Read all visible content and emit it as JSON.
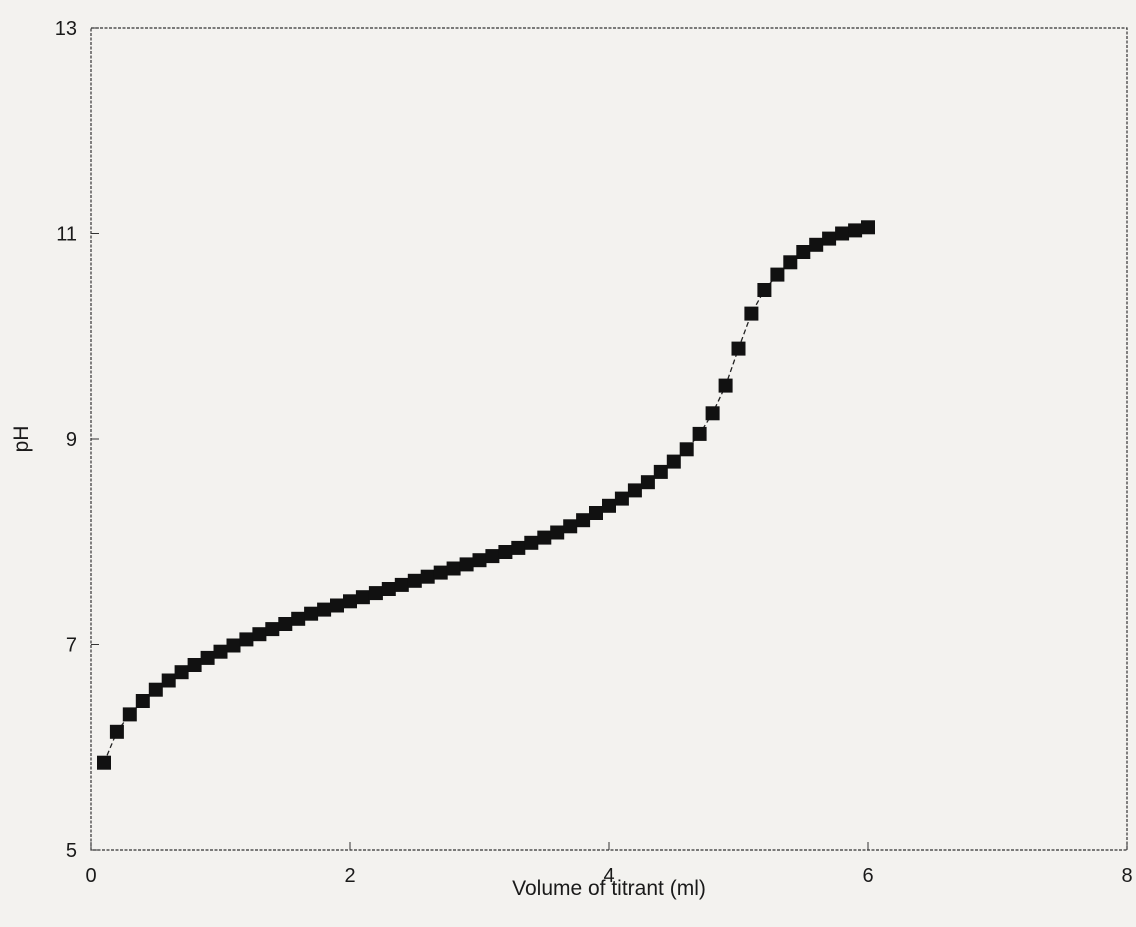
{
  "chart_data": {
    "type": "scatter",
    "title": "",
    "xlabel": "Volume of titrant (ml)",
    "ylabel": "pH",
    "xlim": [
      0,
      8
    ],
    "ylim": [
      5,
      13
    ],
    "xticks": [
      0,
      2,
      4,
      6,
      8
    ],
    "yticks": [
      5,
      7,
      9,
      11,
      13
    ],
    "grid": false,
    "legend": "none",
    "line_style": "dashed",
    "marker": "square",
    "colors": {
      "marker": "#111111",
      "line": "#222222",
      "axis": "#333333",
      "background": "#f3f2ef"
    },
    "series": [
      {
        "x": [
          0.1,
          0.2,
          0.3,
          0.4,
          0.5,
          0.6,
          0.7,
          0.8,
          0.9,
          1.0,
          1.1,
          1.2,
          1.3,
          1.4,
          1.5,
          1.6,
          1.7,
          1.8,
          1.9,
          2.0,
          2.1,
          2.2,
          2.3,
          2.4,
          2.5,
          2.6,
          2.7,
          2.8,
          2.9,
          3.0,
          3.1,
          3.2,
          3.3,
          3.4,
          3.5,
          3.6,
          3.7,
          3.8,
          3.9,
          4.0,
          4.1,
          4.2,
          4.3,
          4.4,
          4.5,
          4.6,
          4.7,
          4.8,
          4.9,
          5.0,
          5.1,
          5.2,
          5.3,
          5.4,
          5.5,
          5.6,
          5.7,
          5.8,
          5.9,
          6.0
        ],
        "y": [
          5.85,
          6.15,
          6.32,
          6.45,
          6.56,
          6.65,
          6.73,
          6.8,
          6.87,
          6.93,
          6.99,
          7.05,
          7.1,
          7.15,
          7.2,
          7.25,
          7.3,
          7.34,
          7.38,
          7.42,
          7.46,
          7.5,
          7.54,
          7.58,
          7.62,
          7.66,
          7.7,
          7.74,
          7.78,
          7.82,
          7.86,
          7.9,
          7.94,
          7.99,
          8.04,
          8.09,
          8.15,
          8.21,
          8.28,
          8.35,
          8.42,
          8.5,
          8.58,
          8.68,
          8.78,
          8.9,
          9.05,
          9.25,
          9.52,
          9.88,
          10.22,
          10.45,
          10.6,
          10.72,
          10.82,
          10.89,
          10.95,
          11.0,
          11.03,
          11.06
        ]
      }
    ]
  }
}
